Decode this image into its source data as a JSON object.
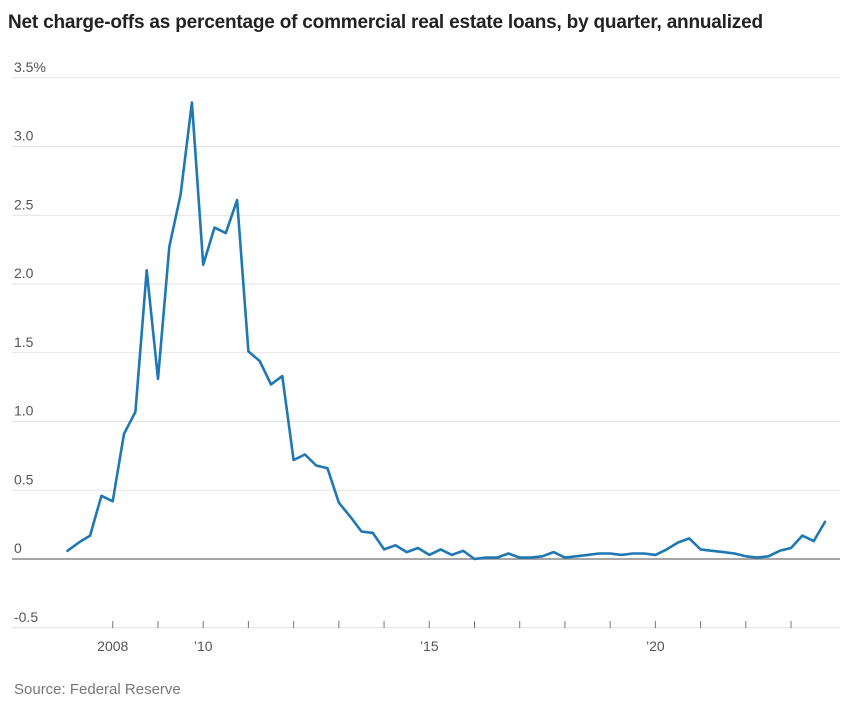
{
  "title": "Net charge-offs as percentage of commercial real estate loans, by quarter, annualized",
  "source": "Source: Federal Reserve",
  "chart_data": {
    "type": "line",
    "title": "Net charge-offs as percentage of commercial real estate loans, by quarter, annualized",
    "xlabel": "",
    "ylabel": "",
    "ylim": [
      -0.5,
      3.5
    ],
    "xlim": [
      2006.9,
      2023.95
    ],
    "y_ticks": [
      {
        "value": 3.5,
        "label": "3.5%"
      },
      {
        "value": 3.0,
        "label": "3.0"
      },
      {
        "value": 2.5,
        "label": "2.5"
      },
      {
        "value": 2.0,
        "label": "2.0"
      },
      {
        "value": 1.5,
        "label": "1.5"
      },
      {
        "value": 1.0,
        "label": "1.0"
      },
      {
        "value": 0.5,
        "label": "0.5"
      },
      {
        "value": 0,
        "label": "0"
      },
      {
        "value": -0.5,
        "label": "-0.5"
      }
    ],
    "x_ticks": [
      {
        "value": 2008,
        "label": "2008"
      },
      {
        "value": 2010,
        "label": "’10"
      },
      {
        "value": 2015,
        "label": "’15"
      },
      {
        "value": 2020,
        "label": "’20"
      }
    ],
    "grid": true,
    "color": "#1f78b4",
    "series": [
      {
        "x": [
          2007.0,
          2007.25,
          2007.5,
          2007.75,
          2008.0,
          2008.25,
          2008.5,
          2008.75,
          2009.0,
          2009.25,
          2009.5,
          2009.75,
          2010.0,
          2010.25,
          2010.5,
          2010.75,
          2011.0,
          2011.25,
          2011.5,
          2011.75,
          2012.0,
          2012.25,
          2012.5,
          2012.75,
          2013.0,
          2013.25,
          2013.5,
          2013.75,
          2014.0,
          2014.25,
          2014.5,
          2014.75,
          2015.0,
          2015.25,
          2015.5,
          2015.75,
          2016.0,
          2016.25,
          2016.5,
          2016.75,
          2017.0,
          2017.25,
          2017.5,
          2017.75,
          2018.0,
          2018.25,
          2018.5,
          2018.75,
          2019.0,
          2019.25,
          2019.5,
          2019.75,
          2020.0,
          2020.25,
          2020.5,
          2020.75,
          2021.0,
          2021.25,
          2021.5,
          2021.75,
          2022.0,
          2022.25,
          2022.5,
          2022.75,
          2023.0,
          2023.25,
          2023.5,
          2023.75
        ],
        "values": [
          0.06,
          0.12,
          0.17,
          0.46,
          0.42,
          0.91,
          1.07,
          2.1,
          1.31,
          2.27,
          2.65,
          3.32,
          2.14,
          2.41,
          2.37,
          2.61,
          1.51,
          1.44,
          1.27,
          1.33,
          0.72,
          0.76,
          0.68,
          0.66,
          0.41,
          0.31,
          0.2,
          0.19,
          0.07,
          0.1,
          0.05,
          0.08,
          0.03,
          0.07,
          0.03,
          0.06,
          0.0,
          0.01,
          0.01,
          0.04,
          0.01,
          0.01,
          0.02,
          0.05,
          0.01,
          0.02,
          0.03,
          0.04,
          0.04,
          0.03,
          0.04,
          0.04,
          0.03,
          0.07,
          0.12,
          0.15,
          0.07,
          0.06,
          0.05,
          0.04,
          0.02,
          0.01,
          0.02,
          0.06,
          0.08,
          0.17,
          0.13,
          0.27
        ]
      }
    ]
  }
}
